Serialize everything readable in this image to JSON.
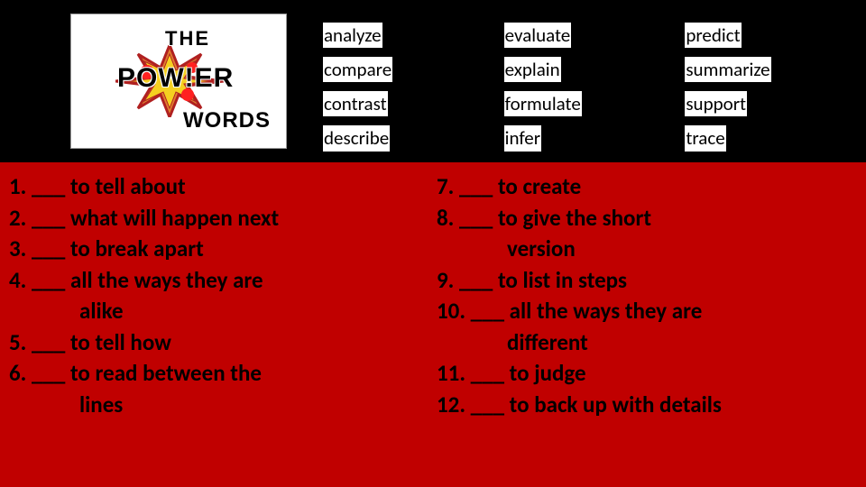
{
  "colors": {
    "background": "#000000",
    "panel": "#c00000",
    "wordbank_bg": "#ffffff",
    "wordbank_text": "#000000",
    "definition_text": "#000000"
  },
  "logo": {
    "line1": "THE",
    "line2": "POW!ER",
    "line3": "WORDS",
    "burst_fill": "#d4751a",
    "burst_stroke": "#c00000",
    "dot_fill": "#ff0000"
  },
  "word_bank": {
    "columns": [
      [
        "analyze",
        "compare",
        "contrast",
        "describe"
      ],
      [
        "evaluate",
        "explain",
        "formulate",
        "infer"
      ],
      [
        "predict",
        "summarize",
        "support",
        "trace"
      ]
    ]
  },
  "definitions": {
    "left": [
      {
        "n": "1.",
        "text": "___ to tell about"
      },
      {
        "n": "2.",
        "text": "___ what will happen next"
      },
      {
        "n": "3.",
        "text": "___ to break apart"
      },
      {
        "n": "4.",
        "text": "___ all the ways they are"
      },
      {
        "n": "",
        "text": "alike",
        "cont": true
      },
      {
        "n": "5.",
        "text": "___ to tell how"
      },
      {
        "n": "6.",
        "text": "___ to read between the"
      },
      {
        "n": "",
        "text": "lines",
        "cont": true
      }
    ],
    "right": [
      {
        "n": "7.",
        "text": "___ to create"
      },
      {
        "n": "8.",
        "text": "___ to give the short"
      },
      {
        "n": "",
        "text": "version",
        "cont": true
      },
      {
        "n": "9.",
        "text": "___ to list in steps"
      },
      {
        "n": "10.",
        "text": "___ all the ways they are"
      },
      {
        "n": "",
        "text": "different",
        "cont": true
      },
      {
        "n": "11.",
        "text": "___ to judge"
      },
      {
        "n": "12.",
        "text": "___ to back up with details"
      }
    ]
  }
}
